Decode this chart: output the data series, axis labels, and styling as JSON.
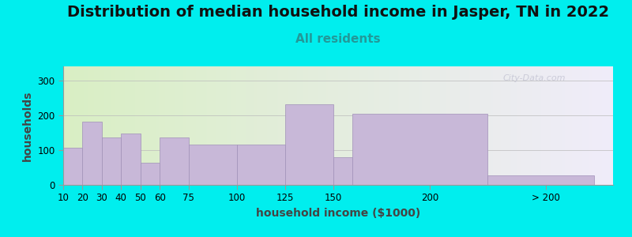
{
  "title": "Distribution of median household income in Jasper, TN in 2022",
  "subtitle": "All residents",
  "xlabel": "household income ($1000)",
  "ylabel": "households",
  "background_color": "#00EEEE",
  "bar_color": "#C8B8D8",
  "bar_edge_color": "#A090B8",
  "categories": [
    "10",
    "20",
    "30",
    "40",
    "50",
    "60",
    "75",
    "100",
    "125",
    "150",
    "200",
    "> 200"
  ],
  "values": [
    107,
    182,
    135,
    147,
    63,
    135,
    115,
    115,
    232,
    80,
    205,
    28
  ],
  "bar_lefts": [
    10,
    20,
    30,
    40,
    50,
    60,
    75,
    100,
    125,
    150,
    160,
    230
  ],
  "bar_widths": [
    10,
    10,
    10,
    10,
    10,
    15,
    25,
    25,
    25,
    10,
    70,
    55
  ],
  "xtick_positions": [
    10,
    20,
    30,
    40,
    50,
    60,
    75,
    100,
    125,
    150,
    200,
    260
  ],
  "xlim": [
    10,
    295
  ],
  "ylim": [
    0,
    340
  ],
  "yticks": [
    0,
    100,
    200,
    300
  ],
  "watermark": "City-Data.com",
  "title_fontsize": 14,
  "subtitle_fontsize": 11,
  "axis_label_fontsize": 10
}
